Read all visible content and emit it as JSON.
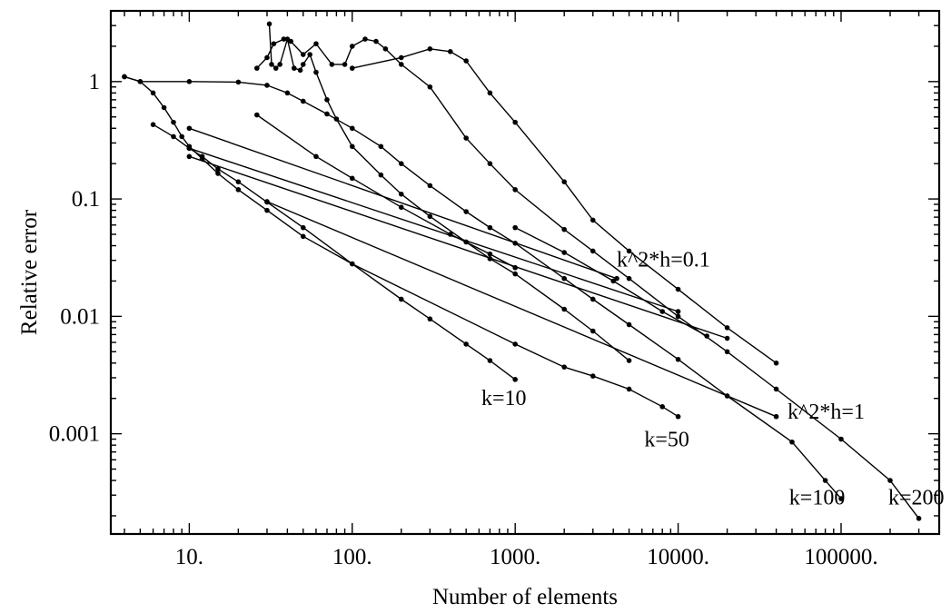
{
  "chart_data": {
    "type": "line",
    "xlabel": "Number of elements",
    "ylabel": "Relative error",
    "xscale": "log",
    "yscale": "log",
    "xlim": [
      3.3,
      400000
    ],
    "ylim": [
      0.00014,
      4
    ],
    "grid": false,
    "colors": {
      "line": "#000000",
      "marker": "#000000",
      "frame": "#000000"
    },
    "x_ticks": [
      {
        "value": 10,
        "label": "10."
      },
      {
        "value": 100,
        "label": "100."
      },
      {
        "value": 1000,
        "label": "1000."
      },
      {
        "value": 10000,
        "label": "10000."
      },
      {
        "value": 100000,
        "label": "100000."
      }
    ],
    "y_ticks": [
      {
        "value": 1,
        "label": "1"
      },
      {
        "value": 0.1,
        "label": "0.1"
      },
      {
        "value": 0.01,
        "label": "0.01"
      },
      {
        "value": 0.001,
        "label": "0.001"
      }
    ],
    "series": [
      {
        "points": [
          [
            4,
            1.1
          ],
          [
            5,
            1
          ],
          [
            6,
            0.8
          ],
          [
            7,
            0.6
          ],
          [
            8,
            0.45
          ],
          [
            9,
            0.34
          ],
          [
            10,
            0.28
          ],
          [
            12,
            0.22
          ],
          [
            15,
            0.165
          ],
          [
            20,
            0.12
          ],
          [
            30,
            0.08
          ],
          [
            50,
            0.048
          ],
          [
            100,
            0.028
          ],
          [
            200,
            0.014
          ],
          [
            300,
            0.0095
          ],
          [
            500,
            0.0058
          ],
          [
            700,
            0.0042
          ],
          [
            1000,
            0.0029
          ]
        ]
      },
      {
        "points": [
          [
            6,
            0.43
          ],
          [
            8,
            0.34
          ],
          [
            10,
            0.27
          ],
          [
            12,
            0.23
          ],
          [
            15,
            0.18
          ],
          [
            20,
            0.14
          ],
          [
            30,
            0.094
          ],
          [
            50,
            0.057
          ],
          [
            100,
            0.028
          ],
          [
            1000,
            0.0058
          ],
          [
            2000,
            0.0037
          ],
          [
            3000,
            0.0031
          ],
          [
            5000,
            0.0024
          ],
          [
            8000,
            0.0017
          ],
          [
            10000,
            0.0014
          ]
        ]
      },
      {
        "points": [
          [
            4,
            1.1
          ],
          [
            5,
            1
          ],
          [
            10,
            1
          ],
          [
            20,
            0.99
          ],
          [
            30,
            0.93
          ],
          [
            40,
            0.8
          ],
          [
            50,
            0.68
          ],
          [
            70,
            0.53
          ],
          [
            100,
            0.4
          ],
          [
            150,
            0.28
          ],
          [
            200,
            0.2
          ],
          [
            300,
            0.13
          ],
          [
            500,
            0.078
          ],
          [
            700,
            0.057
          ],
          [
            1000,
            0.042
          ],
          [
            2000,
            0.021
          ],
          [
            3000,
            0.014
          ],
          [
            5000,
            0.0085
          ],
          [
            10000,
            0.0043
          ],
          [
            20000,
            0.0021
          ],
          [
            50000,
            0.00085
          ],
          [
            80000,
            0.0004
          ],
          [
            100000,
            0.00028
          ]
        ]
      },
      {
        "points": [
          [
            31,
            3.1
          ],
          [
            32,
            1.4
          ],
          [
            34,
            1.3
          ],
          [
            36,
            1.4
          ],
          [
            40,
            2.3
          ],
          [
            44,
            1.3
          ],
          [
            48,
            1.25
          ],
          [
            50,
            1.4
          ],
          [
            55,
            1.7
          ],
          [
            60,
            1.2
          ],
          [
            70,
            0.7
          ],
          [
            80,
            0.48
          ],
          [
            100,
            0.28
          ],
          [
            150,
            0.16
          ],
          [
            200,
            0.11
          ],
          [
            300,
            0.071
          ],
          [
            500,
            0.043
          ],
          [
            700,
            0.031
          ],
          [
            1000,
            0.023
          ],
          [
            2000,
            0.0115
          ],
          [
            3000,
            0.0075
          ],
          [
            5000,
            0.0042
          ]
        ]
      },
      {
        "points": [
          [
            26,
            1.3
          ],
          [
            30,
            1.6
          ],
          [
            33,
            2.1
          ],
          [
            38,
            2.3
          ],
          [
            42,
            2.2
          ],
          [
            50,
            1.7
          ],
          [
            60,
            2.1
          ],
          [
            75,
            1.4
          ],
          [
            90,
            1.4
          ],
          [
            100,
            2
          ],
          [
            120,
            2.3
          ],
          [
            140,
            2.2
          ],
          [
            160,
            1.9
          ],
          [
            200,
            1.4
          ],
          [
            300,
            0.9
          ],
          [
            500,
            0.33
          ],
          [
            700,
            0.2
          ],
          [
            1000,
            0.12
          ],
          [
            2000,
            0.055
          ],
          [
            3000,
            0.036
          ],
          [
            5000,
            0.021
          ],
          [
            10000,
            0.01
          ],
          [
            20000,
            0.005
          ],
          [
            40000,
            0.0024
          ],
          [
            100000,
            0.0009
          ],
          [
            200000,
            0.0004
          ],
          [
            300000,
            0.00019
          ]
        ]
      },
      {
        "points": [
          [
            100,
            1.3
          ],
          [
            200,
            1.6
          ],
          [
            300,
            1.9
          ],
          [
            400,
            1.8
          ],
          [
            500,
            1.5
          ],
          [
            700,
            0.8
          ],
          [
            1000,
            0.45
          ],
          [
            2000,
            0.14
          ],
          [
            3000,
            0.066
          ],
          [
            5000,
            0.036
          ],
          [
            10000,
            0.017
          ],
          [
            20000,
            0.008
          ],
          [
            40000,
            0.004
          ]
        ]
      },
      {
        "points": [
          [
            10,
            0.4
          ],
          [
            4200,
            0.021
          ]
        ]
      },
      {
        "points": [
          [
            10,
            0.27
          ],
          [
            10000,
            0.011
          ]
        ]
      },
      {
        "points": [
          [
            10,
            0.23
          ],
          [
            20000,
            0.0065
          ]
        ]
      },
      {
        "points": [
          [
            30,
            0.095
          ],
          [
            40000,
            0.0014
          ]
        ]
      },
      {
        "points": [
          [
            26,
            0.52
          ],
          [
            60,
            0.23
          ],
          [
            100,
            0.15
          ],
          [
            200,
            0.085
          ],
          [
            400,
            0.05
          ],
          [
            700,
            0.034
          ],
          [
            1000,
            0.026
          ]
        ]
      },
      {
        "points": [
          [
            1000,
            0.057
          ],
          [
            2000,
            0.035
          ],
          [
            4000,
            0.02
          ],
          [
            8000,
            0.011
          ],
          [
            15000,
            0.0068
          ]
        ]
      }
    ],
    "annotations": [
      {
        "text": "k^2*h=0.1",
        "x": 4200,
        "y": 0.0265
      },
      {
        "text": "k^2*h=1",
        "x": 47000,
        "y": 0.00135
      },
      {
        "text": "k=10",
        "x": 620,
        "y": 0.00175
      },
      {
        "text": "k=50",
        "x": 6200,
        "y": 0.00078
      },
      {
        "text": "k=100",
        "x": 48000,
        "y": 0.00025
      },
      {
        "text": "k=200",
        "x": 195000,
        "y": 0.00025
      }
    ]
  }
}
